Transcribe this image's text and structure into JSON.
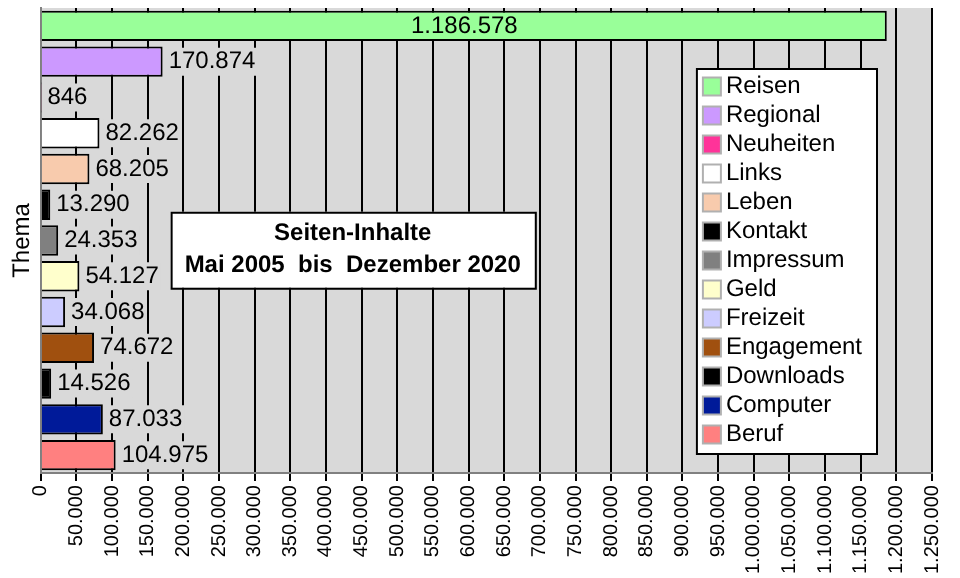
{
  "chart_data": {
    "type": "bar",
    "orientation": "horizontal",
    "title": "Seiten-Inhalte",
    "subtitle": "Mai 2005  bis  Dezember 2020",
    "ylabel": "Thema",
    "categories": [
      null,
      null,
      null,
      null,
      null,
      null,
      null,
      null,
      null,
      null,
      null,
      null,
      null
    ],
    "series": [
      {
        "name": "Reisen",
        "color": "#99ff99",
        "values": [
          1186578,
          null,
          null,
          null,
          null,
          null,
          null,
          null,
          null,
          null,
          null,
          null,
          null
        ],
        "value_labels": [
          "1.186.578",
          null,
          null,
          null,
          null,
          null,
          null,
          null,
          null,
          null,
          null,
          null,
          null
        ]
      },
      {
        "name": "Regional",
        "color": "#cc99ff",
        "values": [
          null,
          170874,
          null,
          null,
          null,
          null,
          null,
          null,
          null,
          null,
          null,
          null,
          null
        ],
        "value_labels": [
          null,
          "170.874",
          null,
          null,
          null,
          null,
          null,
          null,
          null,
          null,
          null,
          null,
          null
        ]
      },
      {
        "name": "Neuheiten",
        "color": "#ff3399",
        "values": [
          null,
          null,
          846,
          null,
          null,
          null,
          null,
          null,
          null,
          null,
          null,
          null,
          null
        ],
        "value_labels": [
          null,
          null,
          "846",
          null,
          null,
          null,
          null,
          null,
          null,
          null,
          null,
          null,
          null
        ]
      },
      {
        "name": "Links",
        "color": "#ffffff",
        "values": [
          null,
          null,
          null,
          82262,
          null,
          null,
          null,
          null,
          null,
          null,
          null,
          null,
          null
        ],
        "value_labels": [
          null,
          null,
          null,
          "82.262",
          null,
          null,
          null,
          null,
          null,
          null,
          null,
          null,
          null
        ]
      },
      {
        "name": "Leben",
        "color": "#f8cbad",
        "values": [
          null,
          null,
          null,
          null,
          68205,
          null,
          null,
          null,
          null,
          null,
          null,
          null,
          null
        ],
        "value_labels": [
          null,
          null,
          null,
          null,
          "68.205",
          null,
          null,
          null,
          null,
          null,
          null,
          null,
          null
        ]
      },
      {
        "name": "Kontakt",
        "color": "#000000",
        "values": [
          null,
          null,
          null,
          null,
          null,
          13290,
          null,
          null,
          null,
          null,
          null,
          null,
          null
        ],
        "value_labels": [
          null,
          null,
          null,
          null,
          null,
          "13.290",
          null,
          null,
          null,
          null,
          null,
          null,
          null
        ]
      },
      {
        "name": "Impressum",
        "color": "#808080",
        "values": [
          null,
          null,
          null,
          null,
          null,
          null,
          24353,
          null,
          null,
          null,
          null,
          null,
          null
        ],
        "value_labels": [
          null,
          null,
          null,
          null,
          null,
          null,
          "24.353",
          null,
          null,
          null,
          null,
          null,
          null
        ]
      },
      {
        "name": "Geld",
        "color": "#ffffcc",
        "values": [
          null,
          null,
          null,
          null,
          null,
          null,
          null,
          54127,
          null,
          null,
          null,
          null,
          null
        ],
        "value_labels": [
          null,
          null,
          null,
          null,
          null,
          null,
          null,
          "54.127",
          null,
          null,
          null,
          null,
          null
        ]
      },
      {
        "name": "Freizeit",
        "color": "#ccccff",
        "values": [
          null,
          null,
          null,
          null,
          null,
          null,
          null,
          null,
          34068,
          null,
          null,
          null,
          null
        ],
        "value_labels": [
          null,
          null,
          null,
          null,
          null,
          null,
          null,
          null,
          "34.068",
          null,
          null,
          null,
          null
        ]
      },
      {
        "name": "Engagement",
        "color": "#a0500f",
        "values": [
          null,
          null,
          null,
          null,
          null,
          null,
          null,
          null,
          null,
          74672,
          null,
          null,
          null
        ],
        "value_labels": [
          null,
          null,
          null,
          null,
          null,
          null,
          null,
          null,
          null,
          "74.672",
          null,
          null,
          null
        ]
      },
      {
        "name": "Downloads",
        "color": "#000000",
        "values": [
          null,
          null,
          null,
          null,
          null,
          null,
          null,
          null,
          null,
          null,
          14526,
          null,
          null
        ],
        "value_labels": [
          null,
          null,
          null,
          null,
          null,
          null,
          null,
          null,
          null,
          null,
          "14.526",
          null,
          null
        ]
      },
      {
        "name": "Computer",
        "color": "#001a99",
        "values": [
          null,
          null,
          null,
          null,
          null,
          null,
          null,
          null,
          null,
          null,
          null,
          87033,
          null
        ],
        "value_labels": [
          null,
          null,
          null,
          null,
          null,
          null,
          null,
          null,
          null,
          null,
          null,
          "87.033",
          null
        ]
      },
      {
        "name": "Beruf",
        "color": "#ff8080",
        "values": [
          null,
          null,
          null,
          null,
          null,
          null,
          null,
          null,
          null,
          null,
          null,
          null,
          104975
        ],
        "value_labels": [
          null,
          null,
          null,
          null,
          null,
          null,
          null,
          null,
          null,
          null,
          null,
          null,
          "104.975"
        ]
      }
    ],
    "xlim": [
      0,
      1250000
    ],
    "xticks": [
      0,
      {
        "value": 50000,
        "label": "50.000"
      },
      {
        "value": 100000,
        "label": "100.000"
      },
      {
        "value": 150000,
        "label": "150.000"
      },
      {
        "value": 200000,
        "label": "200.000"
      },
      {
        "value": 250000,
        "label": "250.000"
      },
      {
        "value": 300000,
        "label": "300.000"
      },
      {
        "value": 350000,
        "label": "350.000"
      },
      {
        "value": 400000,
        "label": "400.000"
      },
      {
        "value": 450000,
        "label": "450.000"
      },
      {
        "value": 500000,
        "label": "500.000"
      },
      {
        "value": 550000,
        "label": "550.000"
      },
      {
        "value": 600000,
        "label": "600.000"
      },
      {
        "value": 650000,
        "label": "650.000"
      },
      {
        "value": 700000,
        "label": "700.000"
      },
      {
        "value": 750000,
        "label": "750.000"
      },
      {
        "value": 800000,
        "label": "800.000"
      },
      {
        "value": 850000,
        "label": "850.000"
      },
      {
        "value": 900000,
        "label": "900.000"
      },
      {
        "value": 950000,
        "label": "950.000"
      },
      {
        "value": 1000000,
        "label": "1.000.000"
      },
      {
        "value": 1050000,
        "label": "1.050.000"
      },
      {
        "value": 1100000,
        "label": "1.100.000"
      },
      {
        "value": 1150000,
        "label": "1.150.000"
      },
      {
        "value": 1200000,
        "label": "1.200.000"
      },
      {
        "value": 1250000,
        "label": "1.250.000"
      }
    ],
    "grid": "x",
    "legend": "right"
  }
}
